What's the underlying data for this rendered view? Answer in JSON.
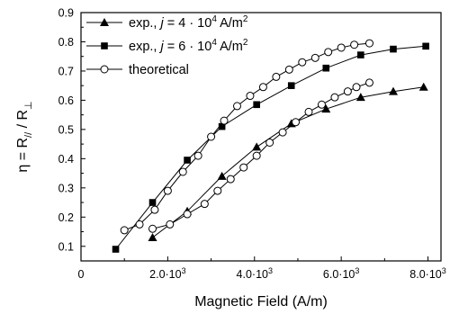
{
  "chart_data": {
    "type": "line",
    "xlabel": "Magnetic Field (A/m)",
    "ylabel_parts": {
      "eta": "η = R",
      "par": "//",
      "slash": " / R",
      "perp": "⊥"
    },
    "xlim": [
      0,
      8300
    ],
    "ylim": [
      0.05,
      0.9
    ],
    "x_ticks": [
      {
        "value": 0,
        "base": "0",
        "exp": ""
      },
      {
        "value": 2000,
        "base": "2.0·10",
        "exp": "3"
      },
      {
        "value": 4000,
        "base": "4.0·10",
        "exp": "3"
      },
      {
        "value": 6000,
        "base": "6.0·10",
        "exp": "3"
      },
      {
        "value": 8000,
        "base": "8.0·10",
        "exp": "3"
      }
    ],
    "y_ticks": [
      "0.1",
      "0.2",
      "0.3",
      "0.4",
      "0.5",
      "0.6",
      "0.7",
      "0.8",
      "0.9"
    ],
    "grid": false,
    "legend_position": "top-left",
    "legend": [
      {
        "marker": "triangle",
        "pre": "exp., ",
        "var": "j",
        "mid": " = 4 · 10",
        "exp": "4",
        "unit": " A/m",
        "unit_exp": "2"
      },
      {
        "marker": "square",
        "pre": "exp., ",
        "var": "j",
        "mid": " = 6 · 10",
        "exp": "4",
        "unit": " A/m",
        "unit_exp": "2"
      },
      {
        "marker": "circle",
        "pre": "theoretical",
        "var": "",
        "mid": "",
        "exp": "",
        "unit": "",
        "unit_exp": ""
      }
    ],
    "series": [
      {
        "marker": "triangle",
        "x": [
          1650,
          2450,
          3250,
          4050,
          4850,
          5650,
          6450,
          7200,
          7900
        ],
        "y": [
          0.13,
          0.22,
          0.34,
          0.44,
          0.52,
          0.57,
          0.61,
          0.63,
          0.645
        ]
      },
      {
        "marker": "square",
        "x": [
          800,
          1650,
          2450,
          3250,
          4050,
          4850,
          5650,
          6450,
          7200,
          7950
        ],
        "y": [
          0.09,
          0.25,
          0.395,
          0.51,
          0.585,
          0.65,
          0.71,
          0.755,
          0.775,
          0.785
        ]
      },
      {
        "marker": "circle",
        "x": [
          1000,
          1350,
          1700,
          2000,
          2350,
          2700,
          3000,
          3300,
          3600,
          3900,
          4200,
          4500,
          4800,
          5100,
          5400,
          5700,
          6000,
          6300,
          6650
        ],
        "y": [
          0.155,
          0.175,
          0.225,
          0.29,
          0.355,
          0.41,
          0.475,
          0.53,
          0.58,
          0.615,
          0.645,
          0.68,
          0.705,
          0.73,
          0.745,
          0.765,
          0.78,
          0.79,
          0.795
        ]
      },
      {
        "marker": "circle",
        "x": [
          1650,
          2050,
          2450,
          2850,
          3150,
          3450,
          3750,
          4050,
          4350,
          4650,
          4950,
          5250,
          5550,
          5850,
          6150,
          6350,
          6650
        ],
        "y": [
          0.16,
          0.175,
          0.21,
          0.245,
          0.29,
          0.33,
          0.37,
          0.41,
          0.455,
          0.49,
          0.525,
          0.56,
          0.585,
          0.61,
          0.63,
          0.645,
          0.66
        ]
      }
    ]
  }
}
